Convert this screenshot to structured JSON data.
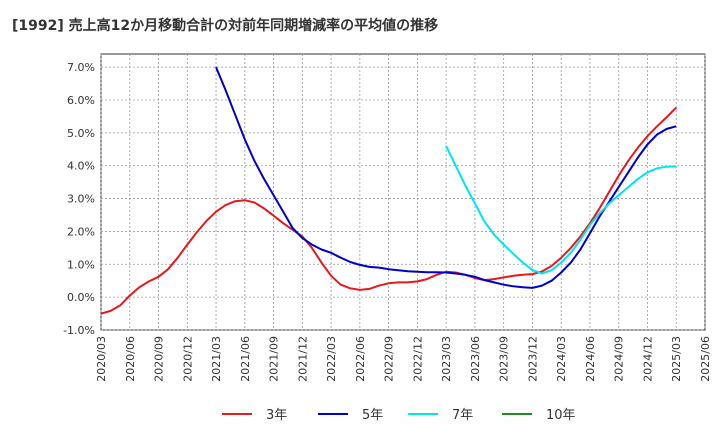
{
  "chart_data": {
    "type": "line",
    "title": "[1992]  売上高12か月移動合計の対前年同期増減率の平均値の推移",
    "xlabel": "",
    "ylabel": "",
    "ylim": [
      -1.0,
      7.4
    ],
    "yticks": [
      "7.0%",
      "6.0%",
      "5.0%",
      "4.0%",
      "3.0%",
      "2.0%",
      "1.0%",
      "0.0%",
      "-1.0%"
    ],
    "ytick_values": [
      7,
      6,
      5,
      4,
      3,
      2,
      1,
      0,
      -1
    ],
    "xticks": [
      "2020/03",
      "2020/06",
      "2020/09",
      "2020/12",
      "2021/03",
      "2021/06",
      "2021/09",
      "2021/12",
      "2022/03",
      "2022/06",
      "2022/09",
      "2022/12",
      "2023/03",
      "2023/06",
      "2023/09",
      "2023/12",
      "2024/03",
      "2024/06",
      "2024/09",
      "2024/12",
      "2025/03",
      "2025/06"
    ],
    "grid": true,
    "legend_position": "bottom",
    "series": [
      {
        "name": "3年",
        "color": "#e41a1c",
        "points": [
          [
            "2020/03",
            -0.5
          ],
          [
            "2020/04",
            -0.42
          ],
          [
            "2020/05",
            -0.25
          ],
          [
            "2020/06",
            0.05
          ],
          [
            "2020/07",
            0.3
          ],
          [
            "2020/08",
            0.48
          ],
          [
            "2020/09",
            0.62
          ],
          [
            "2020/10",
            0.85
          ],
          [
            "2020/11",
            1.2
          ],
          [
            "2020/12",
            1.6
          ],
          [
            "2021/01",
            1.98
          ],
          [
            "2021/02",
            2.32
          ],
          [
            "2021/03",
            2.6
          ],
          [
            "2021/04",
            2.8
          ],
          [
            "2021/05",
            2.92
          ],
          [
            "2021/06",
            2.95
          ],
          [
            "2021/07",
            2.88
          ],
          [
            "2021/08",
            2.7
          ],
          [
            "2021/09",
            2.48
          ],
          [
            "2021/10",
            2.25
          ],
          [
            "2021/11",
            2.05
          ],
          [
            "2021/12",
            1.85
          ],
          [
            "2022/01",
            1.5
          ],
          [
            "2022/02",
            1.05
          ],
          [
            "2022/03",
            0.65
          ],
          [
            "2022/04",
            0.38
          ],
          [
            "2022/05",
            0.27
          ],
          [
            "2022/06",
            0.22
          ],
          [
            "2022/07",
            0.25
          ],
          [
            "2022/08",
            0.35
          ],
          [
            "2022/09",
            0.42
          ],
          [
            "2022/10",
            0.45
          ],
          [
            "2022/11",
            0.45
          ],
          [
            "2022/12",
            0.48
          ],
          [
            "2023/01",
            0.55
          ],
          [
            "2023/02",
            0.68
          ],
          [
            "2023/03",
            0.77
          ],
          [
            "2023/04",
            0.75
          ],
          [
            "2023/05",
            0.68
          ],
          [
            "2023/06",
            0.58
          ],
          [
            "2023/07",
            0.52
          ],
          [
            "2023/08",
            0.55
          ],
          [
            "2023/09",
            0.6
          ],
          [
            "2023/10",
            0.65
          ],
          [
            "2023/11",
            0.68
          ],
          [
            "2023/12",
            0.7
          ],
          [
            "2024/01",
            0.78
          ],
          [
            "2024/02",
            0.95
          ],
          [
            "2024/03",
            1.2
          ],
          [
            "2024/04",
            1.5
          ],
          [
            "2024/05",
            1.85
          ],
          [
            "2024/06",
            2.25
          ],
          [
            "2024/07",
            2.7
          ],
          [
            "2024/08",
            3.2
          ],
          [
            "2024/09",
            3.7
          ],
          [
            "2024/10",
            4.15
          ],
          [
            "2024/11",
            4.55
          ],
          [
            "2024/12",
            4.9
          ],
          [
            "2025/01",
            5.2
          ],
          [
            "2025/02",
            5.48
          ],
          [
            "2025/03",
            5.77
          ]
        ]
      },
      {
        "name": "5年",
        "color": "#0000cc",
        "points": [
          [
            "2021/03",
            7.0
          ],
          [
            "2021/04",
            6.3
          ],
          [
            "2021/05",
            5.55
          ],
          [
            "2021/06",
            4.8
          ],
          [
            "2021/07",
            4.15
          ],
          [
            "2021/08",
            3.6
          ],
          [
            "2021/09",
            3.1
          ],
          [
            "2021/10",
            2.6
          ],
          [
            "2021/11",
            2.1
          ],
          [
            "2021/12",
            1.8
          ],
          [
            "2022/01",
            1.6
          ],
          [
            "2022/02",
            1.45
          ],
          [
            "2022/03",
            1.35
          ],
          [
            "2022/04",
            1.2
          ],
          [
            "2022/05",
            1.07
          ],
          [
            "2022/06",
            0.98
          ],
          [
            "2022/07",
            0.92
          ],
          [
            "2022/08",
            0.9
          ],
          [
            "2022/09",
            0.85
          ],
          [
            "2022/10",
            0.82
          ],
          [
            "2022/11",
            0.79
          ],
          [
            "2022/12",
            0.77
          ],
          [
            "2023/01",
            0.76
          ],
          [
            "2023/02",
            0.76
          ],
          [
            "2023/03",
            0.75
          ],
          [
            "2023/04",
            0.72
          ],
          [
            "2023/05",
            0.68
          ],
          [
            "2023/06",
            0.62
          ],
          [
            "2023/07",
            0.52
          ],
          [
            "2023/08",
            0.45
          ],
          [
            "2023/09",
            0.38
          ],
          [
            "2023/10",
            0.33
          ],
          [
            "2023/11",
            0.3
          ],
          [
            "2023/12",
            0.28
          ],
          [
            "2024/01",
            0.35
          ],
          [
            "2024/02",
            0.5
          ],
          [
            "2024/03",
            0.75
          ],
          [
            "2024/04",
            1.05
          ],
          [
            "2024/05",
            1.45
          ],
          [
            "2024/06",
            1.95
          ],
          [
            "2024/07",
            2.45
          ],
          [
            "2024/08",
            2.9
          ],
          [
            "2024/09",
            3.35
          ],
          [
            "2024/10",
            3.8
          ],
          [
            "2024/11",
            4.25
          ],
          [
            "2024/12",
            4.65
          ],
          [
            "2025/01",
            4.95
          ],
          [
            "2025/02",
            5.12
          ],
          [
            "2025/03",
            5.2
          ]
        ]
      },
      {
        "name": "7年",
        "color": "#00e5ee",
        "points": [
          [
            "2023/03",
            4.6
          ],
          [
            "2023/04",
            4.0
          ],
          [
            "2023/05",
            3.4
          ],
          [
            "2023/06",
            2.85
          ],
          [
            "2023/07",
            2.3
          ],
          [
            "2023/08",
            1.9
          ],
          [
            "2023/09",
            1.6
          ],
          [
            "2023/10",
            1.32
          ],
          [
            "2023/11",
            1.05
          ],
          [
            "2023/12",
            0.83
          ],
          [
            "2024/01",
            0.72
          ],
          [
            "2024/02",
            0.82
          ],
          [
            "2024/03",
            1.05
          ],
          [
            "2024/04",
            1.35
          ],
          [
            "2024/05",
            1.75
          ],
          [
            "2024/06",
            2.2
          ],
          [
            "2024/07",
            2.55
          ],
          [
            "2024/08",
            2.85
          ],
          [
            "2024/09",
            3.1
          ],
          [
            "2024/10",
            3.35
          ],
          [
            "2024/11",
            3.6
          ],
          [
            "2024/12",
            3.8
          ],
          [
            "2025/01",
            3.92
          ],
          [
            "2025/02",
            3.97
          ],
          [
            "2025/03",
            3.98
          ]
        ]
      },
      {
        "name": "10年",
        "color": "#228b22",
        "points": []
      }
    ]
  }
}
